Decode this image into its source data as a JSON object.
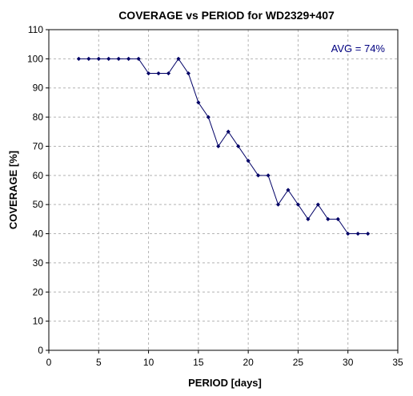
{
  "chart_data": {
    "type": "line",
    "title": "COVERAGE vs PERIOD for WD2329+407",
    "xlabel": "PERIOD [days]",
    "ylabel": "COVERAGE [%]",
    "xlim": [
      0,
      35
    ],
    "ylim": [
      0,
      110
    ],
    "xticks": [
      0,
      5,
      10,
      15,
      20,
      25,
      30,
      35
    ],
    "yticks": [
      0,
      10,
      20,
      30,
      40,
      50,
      60,
      70,
      80,
      90,
      100,
      110
    ],
    "grid": true,
    "legend": "none",
    "annotation": "AVG = 74%",
    "series": [
      {
        "x": [
          3,
          4,
          5,
          6,
          7,
          8,
          9,
          10,
          11,
          12,
          13,
          14,
          15,
          16,
          17,
          18,
          19,
          20,
          21,
          22,
          23,
          24,
          25,
          26,
          27,
          28,
          29,
          30,
          31,
          32
        ],
        "values": [
          100,
          100,
          100,
          100,
          100,
          100,
          100,
          95,
          95,
          95,
          100,
          95,
          85,
          80,
          70,
          75,
          70,
          65,
          60,
          60,
          50,
          55,
          50,
          45,
          50,
          45,
          45,
          40,
          40,
          40
        ]
      }
    ],
    "colors": {
      "line": "#000066",
      "marker": "#000066",
      "annotation": "#000080",
      "grid": "#b4b4b4"
    }
  }
}
